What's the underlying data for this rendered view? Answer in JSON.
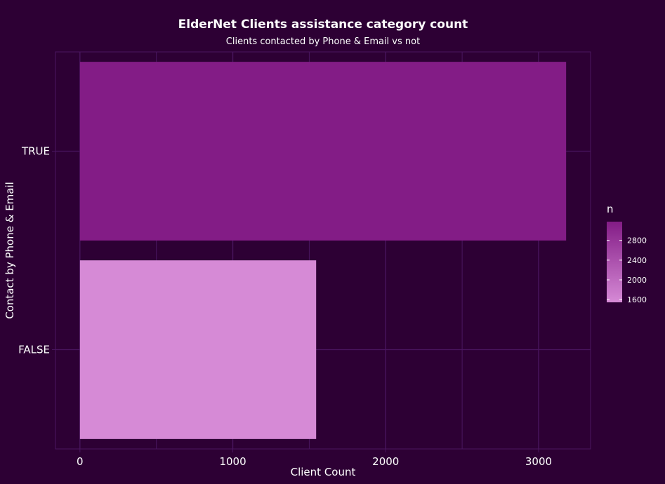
{
  "chart_data": {
    "type": "bar",
    "orientation": "horizontal",
    "title": "ElderNet Clients assistance category count",
    "subtitle": "Clients contacted by Phone & Email vs not",
    "xlabel": "Client Count",
    "ylabel": "Contact by Phone & Email",
    "categories": [
      "TRUE",
      "FALSE"
    ],
    "values": [
      3180,
      1545
    ],
    "xlim": [
      -160,
      3340
    ],
    "x_ticks": [
      0,
      1000,
      2000,
      3000
    ],
    "x_tick_labels": [
      "0",
      "1000",
      "2000",
      "3000"
    ],
    "grid": true,
    "legend": {
      "title": "n",
      "position": "right",
      "type": "colorbar",
      "range": [
        1545,
        3180
      ],
      "ticks": [
        1600,
        2000,
        2400,
        2800
      ],
      "tick_labels": [
        "1600",
        "2000",
        "2400",
        "2800"
      ],
      "low_color": "#d68ad6",
      "high_color": "#831c86"
    },
    "colors": {
      "background": "#2d0034",
      "panel_border": "#4a1660",
      "grid": "#4a1660"
    }
  }
}
